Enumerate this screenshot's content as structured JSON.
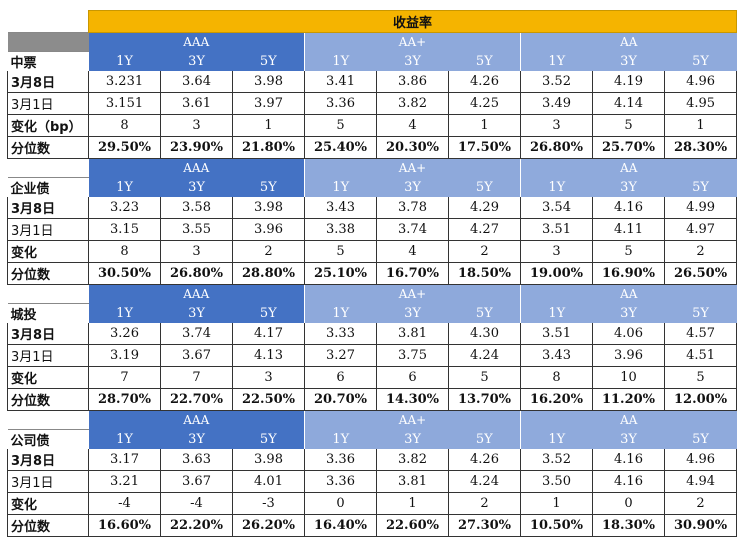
{
  "title": "收益率",
  "groups": [
    "AAA",
    "AA+",
    "AA"
  ],
  "tenors": [
    "1Y",
    "3Y",
    "5Y"
  ],
  "sections": [
    {
      "name": "中票",
      "rows": [
        {
          "label": "3月8日",
          "bold": true,
          "values": [
            "3.231",
            "3.64",
            "3.98",
            "3.41",
            "3.86",
            "4.26",
            "3.52",
            "4.19",
            "4.96"
          ]
        },
        {
          "label": "3月1日",
          "bold": false,
          "values": [
            "3.151",
            "3.61",
            "3.97",
            "3.36",
            "3.82",
            "4.25",
            "3.49",
            "4.14",
            "4.95"
          ]
        },
        {
          "label": "变化（bp）",
          "bold": true,
          "values": [
            "8",
            "3",
            "1",
            "5",
            "4",
            "1",
            "3",
            "5",
            "1"
          ]
        },
        {
          "label": "分位数",
          "bold": true,
          "values": [
            "29.50%",
            "23.90%",
            "21.80%",
            "25.40%",
            "20.30%",
            "17.50%",
            "26.80%",
            "25.70%",
            "28.30%"
          ]
        }
      ]
    },
    {
      "name": "企业债",
      "rows": [
        {
          "label": "3月8日",
          "bold": true,
          "values": [
            "3.23",
            "3.58",
            "3.98",
            "3.43",
            "3.78",
            "4.29",
            "3.54",
            "4.16",
            "4.99"
          ]
        },
        {
          "label": "3月1日",
          "bold": false,
          "values": [
            "3.15",
            "3.55",
            "3.96",
            "3.38",
            "3.74",
            "4.27",
            "3.51",
            "4.11",
            "4.97"
          ]
        },
        {
          "label": "变化",
          "bold": true,
          "values": [
            "8",
            "3",
            "2",
            "5",
            "4",
            "2",
            "3",
            "5",
            "2"
          ]
        },
        {
          "label": "分位数",
          "bold": true,
          "values": [
            "30.50%",
            "26.80%",
            "28.80%",
            "25.10%",
            "16.70%",
            "18.50%",
            "19.00%",
            "16.90%",
            "26.50%"
          ]
        }
      ]
    },
    {
      "name": "城投",
      "rows": [
        {
          "label": "3月8日",
          "bold": true,
          "values": [
            "3.26",
            "3.74",
            "4.17",
            "3.33",
            "3.81",
            "4.30",
            "3.51",
            "4.06",
            "4.57"
          ]
        },
        {
          "label": "3月1日",
          "bold": false,
          "values": [
            "3.19",
            "3.67",
            "4.13",
            "3.27",
            "3.75",
            "4.24",
            "3.43",
            "3.96",
            "4.51"
          ]
        },
        {
          "label": "变化",
          "bold": true,
          "values": [
            "7",
            "7",
            "3",
            "6",
            "6",
            "5",
            "8",
            "10",
            "5"
          ]
        },
        {
          "label": "分位数",
          "bold": true,
          "values": [
            "28.70%",
            "22.70%",
            "22.50%",
            "20.70%",
            "14.30%",
            "13.70%",
            "16.20%",
            "11.20%",
            "12.00%"
          ]
        }
      ]
    },
    {
      "name": "公司债",
      "rows": [
        {
          "label": "3月8日",
          "bold": true,
          "values": [
            "3.17",
            "3.63",
            "3.98",
            "3.36",
            "3.82",
            "4.26",
            "3.52",
            "4.16",
            "4.96"
          ]
        },
        {
          "label": "3月1日",
          "bold": false,
          "values": [
            "3.21",
            "3.67",
            "4.01",
            "3.36",
            "3.81",
            "4.24",
            "3.50",
            "4.16",
            "4.94"
          ]
        },
        {
          "label": "变化",
          "bold": true,
          "values": [
            "-4",
            "-4",
            "-3",
            "0",
            "1",
            "2",
            "1",
            "0",
            "2"
          ]
        },
        {
          "label": "分位数",
          "bold": true,
          "values": [
            "16.60%",
            "22.20%",
            "26.20%",
            "16.40%",
            "22.60%",
            "27.30%",
            "10.50%",
            "18.30%",
            "30.90%"
          ]
        }
      ]
    }
  ],
  "colors": {
    "title_bg": "#f5b400",
    "aaa_bg": "#4472c4",
    "aaplus_bg": "#8ea9db",
    "aa_bg": "#8faadc"
  }
}
